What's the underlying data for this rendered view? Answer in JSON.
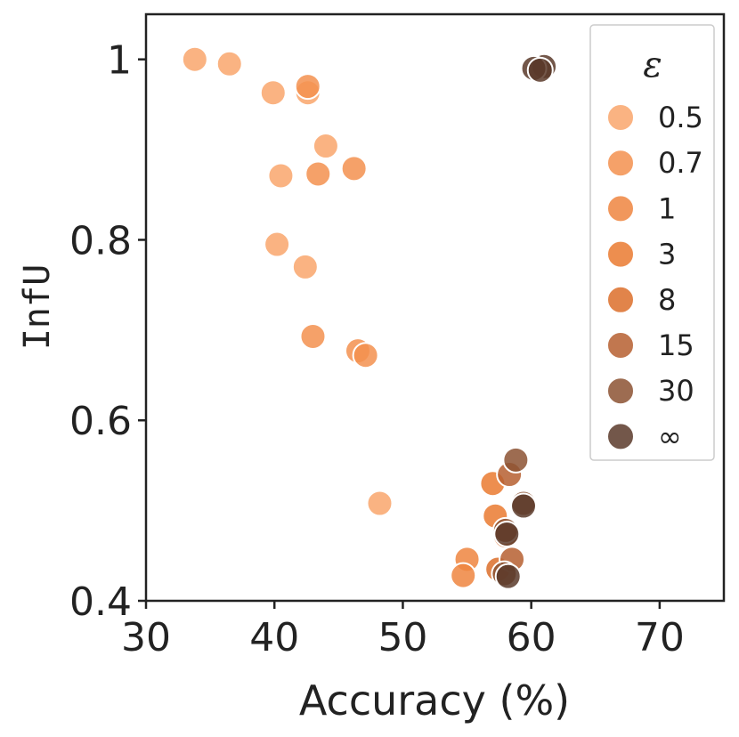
{
  "chart_data": {
    "type": "scatter",
    "xlabel": "Accuracy (%)",
    "ylabel": "InfU",
    "xlim": [
      30,
      75
    ],
    "ylim": [
      0.4,
      1.05
    ],
    "xticks": [
      "30",
      "40",
      "50",
      "60",
      "70"
    ],
    "xtick_values": [
      30,
      40,
      50,
      60,
      70
    ],
    "yticks": [
      "0.4",
      "0.6",
      "0.8",
      "1"
    ],
    "ytick_values": [
      0.4,
      0.6,
      0.8,
      1.0
    ],
    "grid": false,
    "legend": {
      "title": "ε",
      "placement": "top-right"
    },
    "series": [
      {
        "name": "0.5",
        "color": "#f9a66c",
        "points": [
          [
            33.8,
            1.0
          ],
          [
            36.5,
            0.995
          ],
          [
            39.9,
            0.963
          ],
          [
            42.6,
            0.963
          ],
          [
            40.5,
            0.871
          ],
          [
            44.0,
            0.904
          ],
          [
            40.2,
            0.795
          ],
          [
            42.4,
            0.77
          ],
          [
            48.2,
            0.508
          ]
        ]
      },
      {
        "name": "0.7",
        "color": "#f3904f",
        "points": [
          [
            42.6,
            0.97
          ],
          [
            43.4,
            0.873
          ],
          [
            46.2,
            0.879
          ],
          [
            43.0,
            0.693
          ],
          [
            46.5,
            0.677
          ],
          [
            47.1,
            0.672
          ]
        ]
      },
      {
        "name": "1",
        "color": "#ee8540",
        "points": [
          [
            55.0,
            0.446
          ],
          [
            54.7,
            0.428
          ]
        ]
      },
      {
        "name": "3",
        "color": "#ea7a30",
        "points": [
          [
            57.0,
            0.53
          ],
          [
            57.2,
            0.494
          ]
        ]
      },
      {
        "name": "8",
        "color": "#dc6e2a",
        "points": [
          [
            57.4,
            0.435
          ],
          [
            58.0,
            0.472
          ]
        ]
      },
      {
        "name": "15",
        "color": "#b65f30",
        "points": [
          [
            58.3,
            0.54
          ],
          [
            58.5,
            0.446
          ]
        ]
      },
      {
        "name": "30",
        "color": "#8c5233",
        "points": [
          [
            58.8,
            0.556
          ],
          [
            59.4,
            0.508
          ],
          [
            58.0,
            0.478
          ],
          [
            57.9,
            0.43
          ]
        ]
      },
      {
        "name": "∞",
        "color": "#5b3a2a",
        "points": [
          [
            61.0,
            0.992
          ],
          [
            60.2,
            0.99
          ],
          [
            60.7,
            0.988
          ],
          [
            59.4,
            0.505
          ],
          [
            58.1,
            0.474
          ],
          [
            58.2,
            0.427
          ]
        ]
      }
    ]
  }
}
